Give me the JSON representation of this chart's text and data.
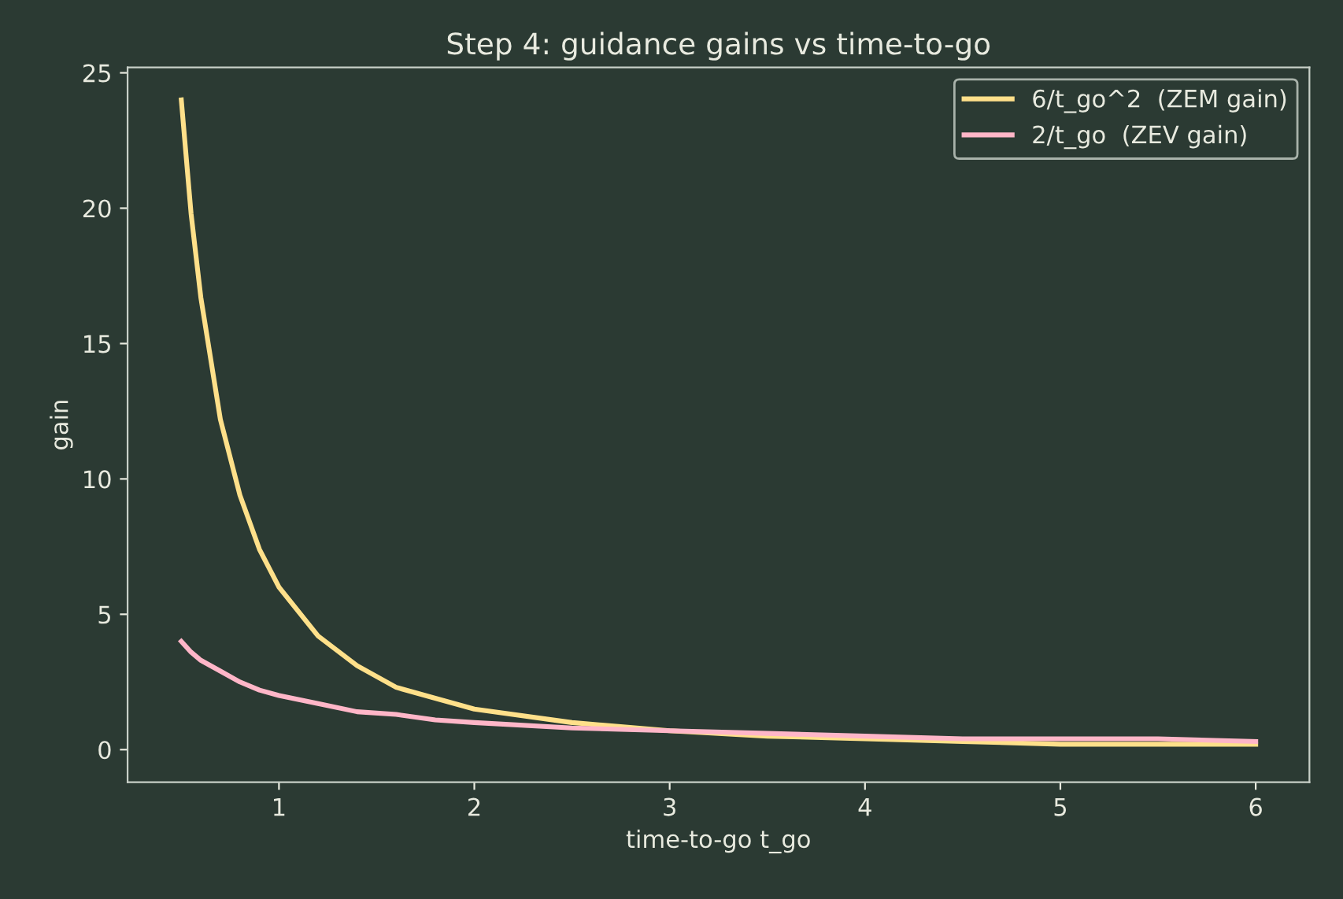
{
  "chart_data": {
    "type": "line",
    "title": "Step 4: guidance gains vs time-to-go",
    "xlabel": "time-to-go t_go",
    "ylabel": "gain",
    "x": [
      0.5,
      0.55,
      0.6,
      0.7,
      0.8,
      0.9,
      1,
      1.2,
      1.4,
      1.6,
      1.8,
      2,
      2.5,
      3,
      3.5,
      4,
      4.5,
      5,
      5.5,
      6
    ],
    "series": [
      {
        "name": "6/t_go^2  (ZEM gain)",
        "color": "#ffe08a",
        "values": [
          24,
          19.8,
          16.7,
          12.2,
          9.4,
          7.4,
          6,
          4.2,
          3.1,
          2.3,
          1.9,
          1.5,
          1.0,
          0.7,
          0.5,
          0.4,
          0.3,
          0.2,
          0.2,
          0.2
        ]
      },
      {
        "name": "2/t_go  (ZEV gain)",
        "color": "#ffb6c8",
        "values": [
          4,
          3.6,
          3.3,
          2.9,
          2.5,
          2.2,
          2,
          1.7,
          1.4,
          1.3,
          1.1,
          1,
          0.8,
          0.7,
          0.6,
          0.5,
          0.4,
          0.4,
          0.4,
          0.3
        ]
      }
    ],
    "xlim": [
      0.225,
      6.275
    ],
    "ylim": [
      -1.2,
      25.2
    ],
    "xticks": [
      1,
      2,
      3,
      4,
      5,
      6
    ],
    "yticks": [
      0,
      5,
      10,
      15,
      20,
      25
    ],
    "legend": "top right",
    "grid": false,
    "marker": "none",
    "line_style": "solid"
  }
}
